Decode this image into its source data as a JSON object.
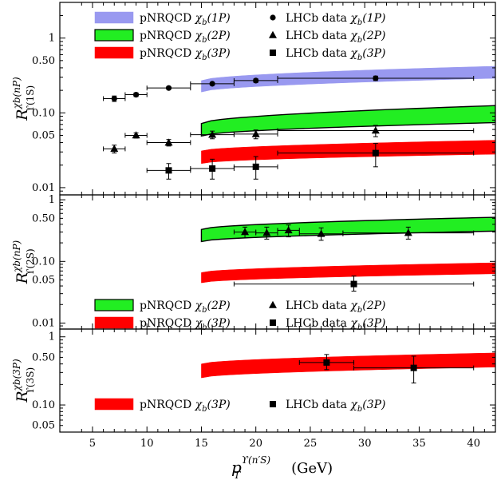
{
  "chart_data": [
    {
      "type": "area",
      "panel": "top",
      "ylabel": {
        "main": "R",
        "sup": "χb(nP)",
        "sub": "ϒ(1S)"
      },
      "xlim": [
        2,
        42
      ],
      "ylim": [
        0.008,
        3.0
      ],
      "log_y": true,
      "yticks": [
        0.01,
        0.05,
        0.1,
        0.5,
        1
      ],
      "ytick_labels": [
        "0.01",
        "0.05",
        "0.10",
        "0.50",
        "1"
      ],
      "bands": [
        {
          "name": "pNRQCD χb(1P)",
          "color": "#9999f0",
          "edge": "#9999f0",
          "x": [
            15,
            42
          ],
          "low": [
            0.19,
            0.29
          ],
          "high": [
            0.27,
            0.42
          ]
        },
        {
          "name": "pNRQCD χb(2P)",
          "color": "#22ee22",
          "edge": "#000000",
          "x": [
            15,
            42
          ],
          "low": [
            0.049,
            0.074
          ],
          "high": [
            0.072,
            0.125
          ]
        },
        {
          "name": "pNRQCD χb(3P)",
          "color": "#ff0000",
          "edge": "#ff0000",
          "x": [
            15,
            42
          ],
          "low": [
            0.021,
            0.028
          ],
          "high": [
            0.031,
            0.043
          ]
        }
      ],
      "data": [
        {
          "name": "LHCb data χb(1P)",
          "marker": "circle",
          "points": [
            {
              "x": 7,
              "y": 0.155,
              "xlo": 6,
              "xhi": 8,
              "ylo": 0.142,
              "yhi": 0.168
            },
            {
              "x": 9,
              "y": 0.175,
              "xlo": 8,
              "xhi": 10,
              "ylo": 0.165,
              "yhi": 0.185
            },
            {
              "x": 12,
              "y": 0.215,
              "xlo": 10,
              "xhi": 14,
              "ylo": 0.207,
              "yhi": 0.223
            },
            {
              "x": 16,
              "y": 0.245,
              "xlo": 14,
              "xhi": 18,
              "ylo": 0.235,
              "yhi": 0.255
            },
            {
              "x": 20,
              "y": 0.27,
              "xlo": 18,
              "xhi": 22,
              "ylo": 0.255,
              "yhi": 0.285
            },
            {
              "x": 31,
              "y": 0.29,
              "xlo": 22,
              "xhi": 40,
              "ylo": 0.27,
              "yhi": 0.31
            }
          ]
        },
        {
          "name": "LHCb data χb(2P)",
          "marker": "triangle",
          "points": [
            {
              "x": 7,
              "y": 0.033,
              "xlo": 6,
              "xhi": 8,
              "ylo": 0.029,
              "yhi": 0.037
            },
            {
              "x": 9,
              "y": 0.05,
              "xlo": 8,
              "xhi": 10,
              "ylo": 0.046,
              "yhi": 0.054
            },
            {
              "x": 12,
              "y": 0.04,
              "xlo": 10,
              "xhi": 14,
              "ylo": 0.036,
              "yhi": 0.044
            },
            {
              "x": 16,
              "y": 0.051,
              "xlo": 14,
              "xhi": 18,
              "ylo": 0.045,
              "yhi": 0.057
            },
            {
              "x": 20,
              "y": 0.052,
              "xlo": 18,
              "xhi": 22,
              "ylo": 0.045,
              "yhi": 0.059
            },
            {
              "x": 31,
              "y": 0.058,
              "xlo": 22,
              "xhi": 40,
              "ylo": 0.048,
              "yhi": 0.068
            }
          ]
        },
        {
          "name": "LHCb data χb(3P)",
          "marker": "square",
          "points": [
            {
              "x": 12,
              "y": 0.017,
              "xlo": 10,
              "xhi": 14,
              "ylo": 0.013,
              "yhi": 0.021
            },
            {
              "x": 16,
              "y": 0.018,
              "xlo": 14,
              "xhi": 18,
              "ylo": 0.013,
              "yhi": 0.024
            },
            {
              "x": 20,
              "y": 0.019,
              "xlo": 18,
              "xhi": 22,
              "ylo": 0.013,
              "yhi": 0.026
            },
            {
              "x": 31,
              "y": 0.029,
              "xlo": 22,
              "xhi": 40,
              "ylo": 0.019,
              "yhi": 0.039
            }
          ]
        }
      ],
      "legend": [
        {
          "kind": "band",
          "color": "#9999f0",
          "edge": "#9999f0",
          "prefix": "pNRQCD ",
          "sym": "χ",
          "sub": "b",
          "arg": "(1P)"
        },
        {
          "kind": "band",
          "color": "#22ee22",
          "edge": "#000000",
          "prefix": "pNRQCD ",
          "sym": "χ",
          "sub": "b",
          "arg": "(2P)"
        },
        {
          "kind": "band",
          "color": "#ff0000",
          "edge": "#ff0000",
          "prefix": "pNRQCD ",
          "sym": "χ",
          "sub": "b",
          "arg": "(3P)"
        },
        {
          "kind": "marker",
          "marker": "circle",
          "prefix": "LHCb data ",
          "sym": "χ",
          "sub": "b",
          "arg": "(1P)"
        },
        {
          "kind": "marker",
          "marker": "triangle",
          "prefix": "LHCb data ",
          "sym": "χ",
          "sub": "b",
          "arg": "(2P)"
        },
        {
          "kind": "marker",
          "marker": "square",
          "prefix": "LHCb data ",
          "sym": "χ",
          "sub": "b",
          "arg": "(3P)"
        }
      ]
    },
    {
      "type": "area",
      "panel": "middle",
      "ylabel": {
        "main": "R",
        "sup": "χb(nP)",
        "sub": "ϒ(2S)"
      },
      "xlim": [
        2,
        42
      ],
      "ylim": [
        0.008,
        1.2
      ],
      "log_y": true,
      "yticks": [
        0.01,
        0.05,
        0.1,
        0.5,
        1
      ],
      "ytick_labels": [
        "0.01",
        "0.05",
        "0.10",
        "0.50",
        "1"
      ],
      "bands": [
        {
          "name": "pNRQCD χb(2P)",
          "color": "#22ee22",
          "edge": "#000000",
          "x": [
            15,
            42
          ],
          "low": [
            0.21,
            0.31
          ],
          "high": [
            0.33,
            0.52
          ]
        },
        {
          "name": "pNRQCD χb(3P)",
          "color": "#ff0000",
          "edge": "#ff0000",
          "x": [
            15,
            42
          ],
          "low": [
            0.045,
            0.063
          ],
          "high": [
            0.066,
            0.095
          ]
        }
      ],
      "data": [
        {
          "name": "LHCb data χb(2P)",
          "marker": "triangle",
          "points": [
            {
              "x": 19,
              "y": 0.3,
              "xlo": 18,
              "xhi": 20,
              "ylo": 0.24,
              "yhi": 0.36
            },
            {
              "x": 21,
              "y": 0.29,
              "xlo": 20,
              "xhi": 22,
              "ylo": 0.23,
              "yhi": 0.36
            },
            {
              "x": 23,
              "y": 0.32,
              "xlo": 22,
              "xhi": 24,
              "ylo": 0.25,
              "yhi": 0.39
            },
            {
              "x": 26,
              "y": 0.28,
              "xlo": 24,
              "xhi": 28,
              "ylo": 0.22,
              "yhi": 0.35
            },
            {
              "x": 34,
              "y": 0.29,
              "xlo": 28,
              "xhi": 40,
              "ylo": 0.23,
              "yhi": 0.36
            }
          ]
        },
        {
          "name": "LHCb data χb(3P)",
          "marker": "square",
          "points": [
            {
              "x": 29,
              "y": 0.043,
              "xlo": 18,
              "xhi": 40,
              "ylo": 0.033,
              "yhi": 0.058
            }
          ]
        }
      ],
      "legend": [
        {
          "kind": "band",
          "color": "#22ee22",
          "edge": "#000000",
          "prefix": "pNRQCD ",
          "sym": "χ",
          "sub": "b",
          "arg": "(2P)"
        },
        {
          "kind": "band",
          "color": "#ff0000",
          "edge": "#ff0000",
          "prefix": "pNRQCD ",
          "sym": "χ",
          "sub": "b",
          "arg": "(3P)"
        },
        {
          "kind": "marker",
          "marker": "triangle",
          "prefix": "LHCb data ",
          "sym": "χ",
          "sub": "b",
          "arg": "(2P)"
        },
        {
          "kind": "marker",
          "marker": "square",
          "prefix": "LHCb data ",
          "sym": "χ",
          "sub": "b",
          "arg": "(3P)"
        }
      ]
    },
    {
      "type": "area",
      "panel": "bottom",
      "ylabel": {
        "main": "R",
        "sup": "χb(3P)",
        "sub": "ϒ(3S)"
      },
      "xlim": [
        2,
        42
      ],
      "ylim": [
        0.04,
        1.3
      ],
      "log_y": true,
      "yticks": [
        0.05,
        0.1,
        0.5,
        1
      ],
      "ytick_labels": [
        "0.05",
        "0.10",
        "0.50",
        "1"
      ],
      "xticks": [
        5,
        10,
        15,
        20,
        25,
        30,
        35,
        40
      ],
      "xtick_labels": [
        "5",
        "10",
        "15",
        "20",
        "25",
        "30",
        "35",
        "40"
      ],
      "xlabel": {
        "main": "p",
        "sub": "T",
        "sup": "ϒ(n′S)",
        "unit": "(GeV)"
      },
      "bands": [
        {
          "name": "pNRQCD χb(3P)",
          "color": "#ff0000",
          "edge": "#ff0000",
          "x": [
            15,
            42
          ],
          "low": [
            0.25,
            0.36
          ],
          "high": [
            0.4,
            0.58
          ]
        }
      ],
      "data": [
        {
          "name": "LHCb data χb(3P)",
          "marker": "square",
          "points": [
            {
              "x": 26.5,
              "y": 0.42,
              "xlo": 24,
              "xhi": 29,
              "ylo": 0.33,
              "yhi": 0.55
            },
            {
              "x": 34.5,
              "y": 0.35,
              "xlo": 29,
              "xhi": 40,
              "ylo": 0.21,
              "yhi": 0.52
            }
          ]
        }
      ],
      "legend": [
        {
          "kind": "band",
          "color": "#ff0000",
          "edge": "#ff0000",
          "prefix": "pNRQCD ",
          "sym": "χ",
          "sub": "b",
          "arg": "(3P)"
        },
        {
          "kind": "marker",
          "marker": "square",
          "prefix": "LHCb data ",
          "sym": "χ",
          "sub": "b",
          "arg": "(3P)"
        }
      ]
    }
  ]
}
